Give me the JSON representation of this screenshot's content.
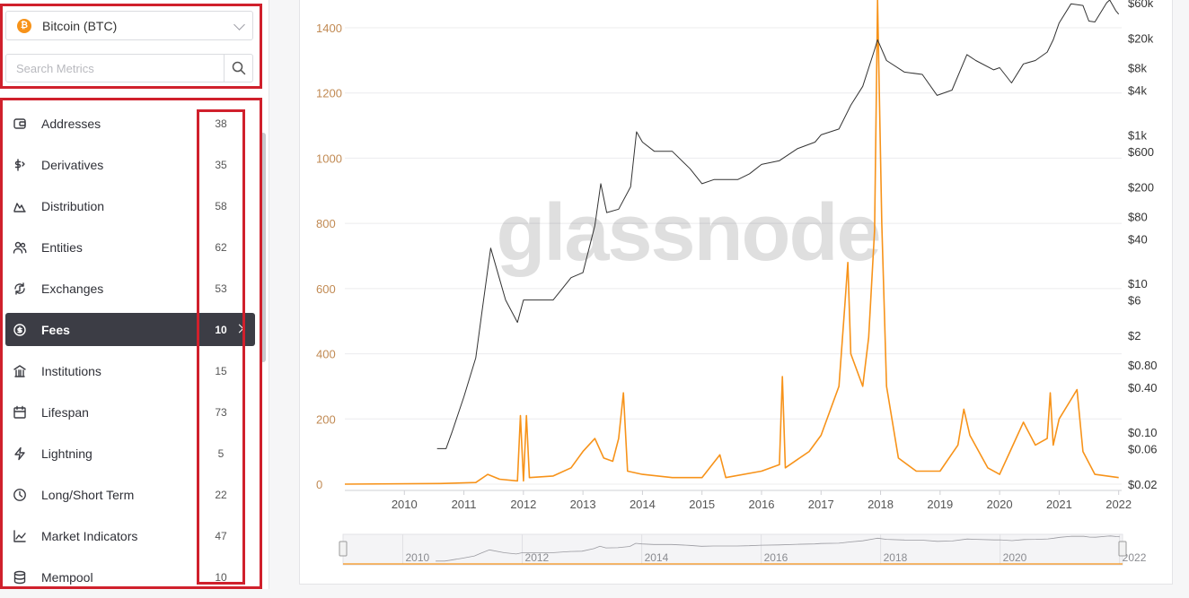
{
  "asset_selector": {
    "coin_symbol": "₿",
    "label": "Bitcoin (BTC)"
  },
  "search": {
    "placeholder": "Search Metrics"
  },
  "categories": [
    {
      "label": "Addresses",
      "count": "38",
      "icon": "wallet-icon"
    },
    {
      "label": "Derivatives",
      "count": "35",
      "icon": "dollar-swap-icon"
    },
    {
      "label": "Distribution",
      "count": "58",
      "icon": "area-chart-icon"
    },
    {
      "label": "Entities",
      "count": "62",
      "icon": "users-icon"
    },
    {
      "label": "Exchanges",
      "count": "53",
      "icon": "exchange-icon"
    },
    {
      "label": "Fees",
      "count": "10",
      "icon": "coin-stack-icon",
      "active": true
    },
    {
      "label": "Institutions",
      "count": "15",
      "icon": "bank-icon"
    },
    {
      "label": "Lifespan",
      "count": "73",
      "icon": "calendar-icon"
    },
    {
      "label": "Lightning",
      "count": "5",
      "icon": "lightning-icon"
    },
    {
      "label": "Long/Short Term",
      "count": "22",
      "icon": "clock-icon"
    },
    {
      "label": "Market Indicators",
      "count": "47",
      "icon": "line-chart-icon"
    },
    {
      "label": "Mempool",
      "count": "10",
      "icon": "database-icon"
    }
  ],
  "colors": {
    "fee_series": "#f7931a",
    "price_series": "#333333",
    "annotation": "#d0202c",
    "active_row": "#3c3d45"
  },
  "chart_data": {
    "type": "line",
    "watermark": "glassnode",
    "x_ticks": [
      "2010",
      "2011",
      "2012",
      "2013",
      "2014",
      "2015",
      "2016",
      "2017",
      "2018",
      "2019",
      "2020",
      "2021",
      "2022"
    ],
    "left_axis": {
      "ticks": [
        "0",
        "200",
        "400",
        "600",
        "800",
        "1000",
        "1200",
        "1400"
      ],
      "ylim": [
        0,
        1400
      ]
    },
    "right_axis": {
      "scale": "log",
      "ticks": [
        "$0.02",
        "$0.06",
        "$0.10",
        "$0.40",
        "$0.80",
        "$2",
        "$6",
        "$10",
        "$40",
        "$80",
        "$200",
        "$600",
        "$1k",
        "$4k",
        "$8k",
        "$20k",
        "$60k"
      ],
      "ylim": [
        0.02,
        60000
      ]
    },
    "series": [
      {
        "axis": "left",
        "color": "#f7931a",
        "values": [
          [
            2009.0,
            0
          ],
          [
            2010.6,
            2
          ],
          [
            2011.2,
            5
          ],
          [
            2011.4,
            30
          ],
          [
            2011.6,
            15
          ],
          [
            2011.9,
            10
          ],
          [
            2011.95,
            210
          ],
          [
            2012.0,
            10
          ],
          [
            2012.05,
            210
          ],
          [
            2012.1,
            20
          ],
          [
            2012.5,
            25
          ],
          [
            2012.8,
            50
          ],
          [
            2013.0,
            100
          ],
          [
            2013.2,
            140
          ],
          [
            2013.35,
            80
          ],
          [
            2013.5,
            70
          ],
          [
            2013.6,
            140
          ],
          [
            2013.68,
            280
          ],
          [
            2013.75,
            40
          ],
          [
            2014.0,
            30
          ],
          [
            2014.5,
            20
          ],
          [
            2015.0,
            20
          ],
          [
            2015.3,
            90
          ],
          [
            2015.4,
            20
          ],
          [
            2016.0,
            40
          ],
          [
            2016.3,
            60
          ],
          [
            2016.35,
            330
          ],
          [
            2016.4,
            50
          ],
          [
            2016.8,
            100
          ],
          [
            2017.0,
            150
          ],
          [
            2017.3,
            300
          ],
          [
            2017.4,
            550
          ],
          [
            2017.45,
            680
          ],
          [
            2017.5,
            400
          ],
          [
            2017.7,
            300
          ],
          [
            2017.8,
            450
          ],
          [
            2017.9,
            780
          ],
          [
            2017.95,
            1500
          ],
          [
            2018.02,
            800
          ],
          [
            2018.1,
            300
          ],
          [
            2018.3,
            80
          ],
          [
            2018.6,
            40
          ],
          [
            2019.0,
            40
          ],
          [
            2019.3,
            120
          ],
          [
            2019.4,
            230
          ],
          [
            2019.5,
            150
          ],
          [
            2019.8,
            50
          ],
          [
            2020.0,
            30
          ],
          [
            2020.2,
            110
          ],
          [
            2020.4,
            190
          ],
          [
            2020.6,
            120
          ],
          [
            2020.8,
            140
          ],
          [
            2020.85,
            280
          ],
          [
            2020.9,
            120
          ],
          [
            2021.0,
            200
          ],
          [
            2021.2,
            260
          ],
          [
            2021.3,
            290
          ],
          [
            2021.4,
            100
          ],
          [
            2021.6,
            30
          ],
          [
            2022.0,
            20
          ]
        ]
      },
      {
        "axis": "right",
        "color": "#333333",
        "values": [
          [
            2010.55,
            0.06
          ],
          [
            2010.7,
            0.06
          ],
          [
            2010.8,
            0.1
          ],
          [
            2011.0,
            0.3
          ],
          [
            2011.2,
            1
          ],
          [
            2011.3,
            4
          ],
          [
            2011.45,
            30
          ],
          [
            2011.7,
            6
          ],
          [
            2011.9,
            3
          ],
          [
            2012.0,
            6
          ],
          [
            2012.5,
            6
          ],
          [
            2012.8,
            12
          ],
          [
            2013.0,
            14
          ],
          [
            2013.2,
            60
          ],
          [
            2013.3,
            220
          ],
          [
            2013.4,
            90
          ],
          [
            2013.6,
            100
          ],
          [
            2013.8,
            200
          ],
          [
            2013.9,
            1100
          ],
          [
            2014.0,
            800
          ],
          [
            2014.2,
            600
          ],
          [
            2014.5,
            600
          ],
          [
            2014.8,
            350
          ],
          [
            2015.0,
            220
          ],
          [
            2015.2,
            250
          ],
          [
            2015.6,
            250
          ],
          [
            2015.8,
            300
          ],
          [
            2016.0,
            400
          ],
          [
            2016.3,
            450
          ],
          [
            2016.6,
            650
          ],
          [
            2016.9,
            800
          ],
          [
            2017.0,
            1000
          ],
          [
            2017.3,
            1200
          ],
          [
            2017.5,
            2500
          ],
          [
            2017.7,
            4500
          ],
          [
            2017.9,
            14000
          ],
          [
            2017.95,
            19000
          ],
          [
            2018.1,
            10000
          ],
          [
            2018.4,
            7000
          ],
          [
            2018.7,
            6500
          ],
          [
            2018.95,
            3400
          ],
          [
            2019.2,
            4000
          ],
          [
            2019.45,
            12000
          ],
          [
            2019.6,
            10000
          ],
          [
            2019.9,
            7500
          ],
          [
            2020.0,
            8000
          ],
          [
            2020.2,
            5000
          ],
          [
            2020.4,
            9000
          ],
          [
            2020.6,
            10000
          ],
          [
            2020.8,
            13000
          ],
          [
            2020.9,
            19000
          ],
          [
            2021.0,
            32000
          ],
          [
            2021.2,
            58000
          ],
          [
            2021.4,
            55000
          ],
          [
            2021.5,
            34000
          ],
          [
            2021.6,
            33000
          ],
          [
            2021.8,
            60000
          ],
          [
            2021.85,
            66000
          ],
          [
            2021.95,
            47000
          ],
          [
            2022.0,
            42000
          ]
        ]
      }
    ],
    "navigator": {
      "x_ticks": [
        "2010",
        "2012",
        "2014",
        "2016",
        "2018",
        "2020",
        "2022"
      ]
    }
  }
}
